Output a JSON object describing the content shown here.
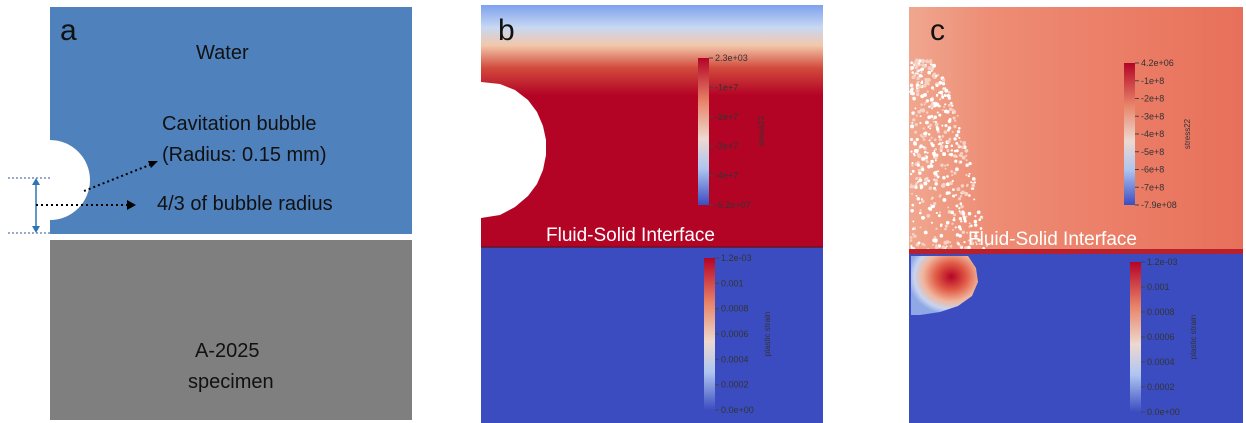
{
  "panel_a": {
    "label": "a",
    "water": "Water",
    "bubble_line1": "Cavitation bubble",
    "bubble_line2": "(Radius: 0.15 mm)",
    "offset": "4/3 of bubble radius",
    "specimen_line1": "A-2025",
    "specimen_line2": "specimen"
  },
  "panel_b": {
    "label": "b",
    "interface": "Fluid-Solid Interface",
    "stress_colorbar": {
      "title": "stress22",
      "ticks": [
        "2.3e+03",
        "-1e+7",
        "-2e+7",
        "-3e+7",
        "-4e+7",
        "-5.2e+07"
      ]
    },
    "strain_colorbar": {
      "title": "plastic strain",
      "ticks": [
        "1.2e-03",
        "0.001",
        "0.0008",
        "0.0006",
        "0.0004",
        "0.0002",
        "0.0e+00"
      ]
    }
  },
  "panel_c": {
    "label": "c",
    "interface": "Fluid-Solid Interface",
    "stress_colorbar": {
      "title": "stress22",
      "ticks": [
        "4.2e+06",
        "-1e+8",
        "-2e+8",
        "-3e+8",
        "-4e+8",
        "-5e+8",
        "-6e+8",
        "-7e+8",
        "-7.9e+08"
      ]
    },
    "strain_colorbar": {
      "title": "plastic strain",
      "ticks": [
        "1.2e-03",
        "0.001",
        "0.0008",
        "0.0006",
        "0.0004",
        "0.0002",
        "0.0e+00"
      ]
    }
  },
  "colors": {
    "water": "#4F81BD",
    "specimen": "#7F7F7F",
    "fluid_high": "#B40426",
    "solid_base": "#3B4CC0",
    "panel_c_fluid": "#E8705A"
  }
}
